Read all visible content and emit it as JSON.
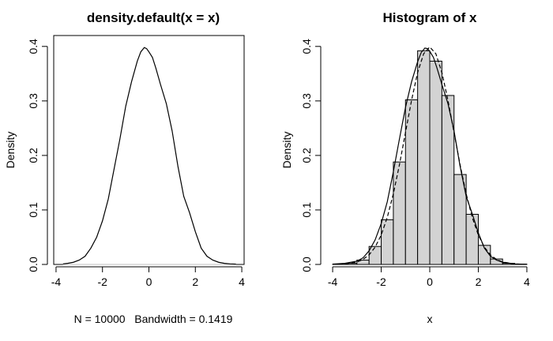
{
  "chart_data": [
    {
      "type": "line",
      "title": "density.default(x = x)",
      "xlabel": "N = 10000   Bandwidth = 0.1419",
      "ylabel": "Density",
      "xlim": [
        -4.1,
        4.1
      ],
      "ylim": [
        0,
        0.42
      ],
      "xticks": [
        -4,
        -2,
        0,
        2,
        4
      ],
      "xtick_labels": [
        "-4",
        "-2",
        "0",
        "2",
        "4"
      ],
      "yticks": [
        0.0,
        0.1,
        0.2,
        0.3,
        0.4
      ],
      "ytick_labels": [
        "0.0",
        "0.1",
        "0.2",
        "0.3",
        "0.4"
      ],
      "baseline": 0,
      "baseline_color": "#bebebe",
      "series": [
        {
          "style": "solid",
          "x": [
            -3.7,
            -3.5,
            -3.25,
            -3.0,
            -2.75,
            -2.5,
            -2.25,
            -2.0,
            -1.75,
            -1.5,
            -1.25,
            -1.0,
            -0.75,
            -0.5,
            -0.35,
            -0.2,
            -0.1,
            0.0,
            0.15,
            0.3,
            0.5,
            0.75,
            1.0,
            1.25,
            1.5,
            1.75,
            2.0,
            2.25,
            2.5,
            2.75,
            3.0,
            3.25,
            3.5,
            3.75
          ],
          "y": [
            0.001,
            0.002,
            0.004,
            0.008,
            0.015,
            0.03,
            0.05,
            0.08,
            0.12,
            0.175,
            0.23,
            0.29,
            0.335,
            0.373,
            0.39,
            0.398,
            0.396,
            0.39,
            0.38,
            0.36,
            0.33,
            0.295,
            0.245,
            0.18,
            0.125,
            0.095,
            0.06,
            0.03,
            0.015,
            0.008,
            0.004,
            0.002,
            0.001,
            0.0005
          ]
        }
      ]
    },
    {
      "type": "bar",
      "title": "Histogram of x",
      "xlabel": "x",
      "ylabel": "Density",
      "xlim": [
        -4.1,
        4.1
      ],
      "ylim": [
        0,
        0.42
      ],
      "xticks": [
        -4,
        -2,
        0,
        2,
        4
      ],
      "xtick_labels": [
        "-4",
        "-2",
        "0",
        "2",
        "4"
      ],
      "yticks": [
        0.0,
        0.1,
        0.2,
        0.3,
        0.4
      ],
      "ytick_labels": [
        "0.0",
        "0.1",
        "0.2",
        "0.3",
        "0.4"
      ],
      "bar_fill": "#d3d3d3",
      "bins": [
        {
          "x0": -4.0,
          "x1": -3.5,
          "density": 0.0004
        },
        {
          "x0": -3.5,
          "x1": -3.0,
          "density": 0.002
        },
        {
          "x0": -3.0,
          "x1": -2.5,
          "density": 0.008
        },
        {
          "x0": -2.5,
          "x1": -2.0,
          "density": 0.033
        },
        {
          "x0": -2.0,
          "x1": -1.5,
          "density": 0.082
        },
        {
          "x0": -1.5,
          "x1": -1.0,
          "density": 0.188
        },
        {
          "x0": -1.0,
          "x1": -0.5,
          "density": 0.302
        },
        {
          "x0": -0.5,
          "x1": 0.0,
          "density": 0.392
        },
        {
          "x0": 0.0,
          "x1": 0.5,
          "density": 0.373
        },
        {
          "x0": 0.5,
          "x1": 1.0,
          "density": 0.31
        },
        {
          "x0": 1.0,
          "x1": 1.5,
          "density": 0.165
        },
        {
          "x0": 1.5,
          "x1": 2.0,
          "density": 0.092
        },
        {
          "x0": 2.0,
          "x1": 2.5,
          "density": 0.035
        },
        {
          "x0": 2.5,
          "x1": 3.0,
          "density": 0.01
        },
        {
          "x0": 3.0,
          "x1": 3.5,
          "density": 0.002
        },
        {
          "x0": 3.5,
          "x1": 4.0,
          "density": 0.0005
        }
      ],
      "overlays": [
        {
          "style": "solid",
          "x": [
            -4.0,
            -3.5,
            -3.0,
            -2.75,
            -2.5,
            -2.25,
            -2.0,
            -1.75,
            -1.5,
            -1.25,
            -1.0,
            -0.75,
            -0.5,
            -0.35,
            -0.2,
            -0.1,
            0.0,
            0.15,
            0.3,
            0.5,
            0.75,
            1.0,
            1.25,
            1.5,
            1.75,
            2.0,
            2.25,
            2.5,
            2.75,
            3.0,
            3.5,
            4.0
          ],
          "y": [
            0.0005,
            0.002,
            0.006,
            0.012,
            0.025,
            0.045,
            0.075,
            0.115,
            0.17,
            0.23,
            0.288,
            0.335,
            0.372,
            0.389,
            0.397,
            0.396,
            0.391,
            0.38,
            0.36,
            0.33,
            0.295,
            0.245,
            0.18,
            0.125,
            0.093,
            0.058,
            0.03,
            0.015,
            0.008,
            0.004,
            0.001,
            0.0003
          ]
        },
        {
          "style": "dashed",
          "x": [
            -4.0,
            -3.5,
            -3.0,
            -2.75,
            -2.5,
            -2.25,
            -2.0,
            -1.75,
            -1.5,
            -1.25,
            -1.0,
            -0.75,
            -0.5,
            -0.25,
            0.0,
            0.25,
            0.5,
            0.75,
            1.0,
            1.25,
            1.5,
            1.75,
            2.0,
            2.25,
            2.5,
            2.75,
            3.0,
            3.5,
            4.0
          ],
          "y": [
            0.0001,
            0.0009,
            0.0044,
            0.0091,
            0.0175,
            0.0317,
            0.054,
            0.0863,
            0.1295,
            0.1826,
            0.242,
            0.3011,
            0.3521,
            0.3867,
            0.3989,
            0.3867,
            0.3521,
            0.3011,
            0.242,
            0.1826,
            0.1295,
            0.0863,
            0.054,
            0.0317,
            0.0175,
            0.0091,
            0.0044,
            0.0009,
            0.0001
          ]
        }
      ]
    }
  ]
}
